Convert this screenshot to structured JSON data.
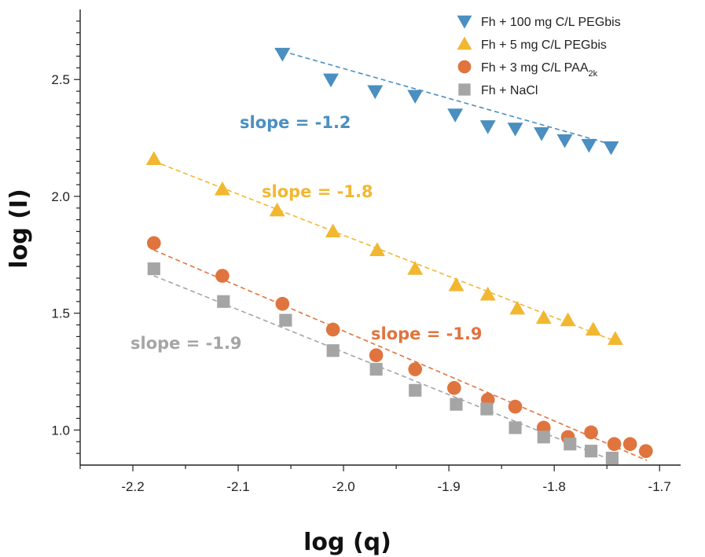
{
  "chart_data": {
    "type": "scatter",
    "xlabel": "log (q)",
    "ylabel": "log (I)",
    "xlim": [
      -2.25,
      -1.68
    ],
    "ylim": [
      0.85,
      2.8
    ],
    "xticks": [
      "-2.2",
      "-2.1",
      "-2.0",
      "-1.9",
      "-1.8",
      "-1.7"
    ],
    "yticks": [
      "1.0",
      "1.5",
      "2.0",
      "2.5"
    ],
    "grid": false,
    "legend_position": "top-right",
    "series": [
      {
        "name": "Fh + 100 mg C/L PEGbis",
        "marker": "triangle-down",
        "color": "#4a8fc0",
        "x": [
          -2.058,
          -2.012,
          -1.97,
          -1.932,
          -1.894,
          -1.863,
          -1.837,
          -1.812,
          -1.79,
          -1.767,
          -1.746
        ],
        "y": [
          2.61,
          2.5,
          2.45,
          2.43,
          2.35,
          2.3,
          2.29,
          2.27,
          2.24,
          2.22,
          2.21
        ],
        "fit_line": {
          "x": [
            -2.065,
            -1.744
          ],
          "y": [
            2.63,
            2.22
          ]
        },
        "slope_label": "slope = -1.2"
      },
      {
        "name": "Fh + 5 mg C/L PEGbis",
        "marker": "triangle-up",
        "color": "#f2b731",
        "x": [
          -2.18,
          -2.115,
          -2.063,
          -2.01,
          -1.968,
          -1.932,
          -1.893,
          -1.863,
          -1.835,
          -1.81,
          -1.787,
          -1.763,
          -1.742
        ],
        "y": [
          2.16,
          2.03,
          1.94,
          1.85,
          1.77,
          1.69,
          1.62,
          1.58,
          1.52,
          1.48,
          1.47,
          1.43,
          1.39
        ],
        "fit_line": {
          "x": [
            -2.18,
            -1.742
          ],
          "y": [
            2.15,
            1.38
          ]
        },
        "slope_label": "slope = -1.8"
      },
      {
        "name": "Fh + 3 mg C/L PAA",
        "name_subscript": "2k",
        "marker": "circle",
        "color": "#e0743e",
        "x": [
          -2.18,
          -2.115,
          -2.058,
          -2.01,
          -1.969,
          -1.932,
          -1.895,
          -1.863,
          -1.837,
          -1.81,
          -1.787,
          -1.765,
          -1.743,
          -1.728,
          -1.713
        ],
        "y": [
          1.8,
          1.66,
          1.54,
          1.43,
          1.32,
          1.26,
          1.18,
          1.13,
          1.1,
          1.01,
          0.97,
          0.99,
          0.94,
          0.94,
          0.91
        ],
        "fit_line": {
          "x": [
            -2.18,
            -1.712
          ],
          "y": [
            1.77,
            0.87
          ]
        },
        "slope_label": "slope = -1.9"
      },
      {
        "name": "Fh + NaCl",
        "marker": "square",
        "color": "#a5a5a5",
        "x": [
          -2.18,
          -2.114,
          -2.055,
          -2.01,
          -1.969,
          -1.932,
          -1.893,
          -1.864,
          -1.837,
          -1.81,
          -1.785,
          -1.765,
          -1.745
        ],
        "y": [
          1.69,
          1.55,
          1.47,
          1.34,
          1.26,
          1.17,
          1.11,
          1.09,
          1.01,
          0.97,
          0.94,
          0.91,
          0.88
        ],
        "fit_line": {
          "x": [
            -2.18,
            -1.745
          ],
          "y": [
            1.66,
            0.87
          ]
        },
        "slope_label": "slope = -1.9"
      }
    ]
  }
}
